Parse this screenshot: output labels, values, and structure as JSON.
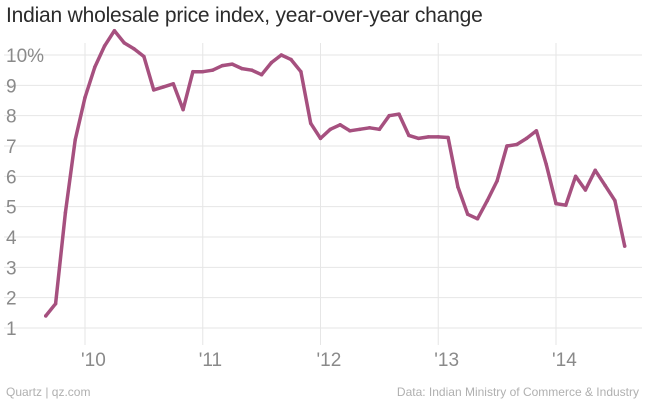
{
  "title": "Indian wholesale price index, year-over-year change",
  "footer": {
    "credit": "Quartz | qz.com",
    "source": "Data: Indian Ministry of Commerce & Industry"
  },
  "colors": {
    "line": "#a6507f",
    "grid": "#e6e6e6",
    "tick_text": "#8a8a8a"
  },
  "chart_data": {
    "type": "line",
    "title": "Indian wholesale price index, year-over-year change",
    "ylim": [
      1,
      10
    ],
    "xlim": [
      2009.5,
      2014.75
    ],
    "y_ticks": [
      {
        "value": 10,
        "label": "10%"
      },
      {
        "value": 9,
        "label": "9"
      },
      {
        "value": 8,
        "label": "8"
      },
      {
        "value": 7,
        "label": "7"
      },
      {
        "value": 6,
        "label": "6"
      },
      {
        "value": 5,
        "label": "5"
      },
      {
        "value": 4,
        "label": "4"
      },
      {
        "value": 3,
        "label": "3"
      },
      {
        "value": 2,
        "label": "2"
      },
      {
        "value": 1,
        "label": "1"
      }
    ],
    "x_ticks": [
      {
        "value": 2010,
        "label": "'10"
      },
      {
        "value": 2011,
        "label": "'11"
      },
      {
        "value": 2012,
        "label": "'12"
      },
      {
        "value": 2013,
        "label": "'13"
      },
      {
        "value": 2014,
        "label": "'14"
      }
    ],
    "grid": true,
    "series": [
      {
        "x": [
          "2009-09",
          "2009-10",
          "2009-11",
          "2009-12",
          "2010-01",
          "2010-02",
          "2010-03",
          "2010-04",
          "2010-05",
          "2010-06",
          "2010-07",
          "2010-08",
          "2010-09",
          "2010-10",
          "2010-11",
          "2010-12",
          "2011-01",
          "2011-02",
          "2011-03",
          "2011-04",
          "2011-05",
          "2011-06",
          "2011-07",
          "2011-08",
          "2011-09",
          "2011-10",
          "2011-11",
          "2011-12",
          "2012-01",
          "2012-02",
          "2012-03",
          "2012-04",
          "2012-05",
          "2012-06",
          "2012-07",
          "2012-08",
          "2012-09",
          "2012-10",
          "2012-11",
          "2012-12",
          "2013-01",
          "2013-02",
          "2013-03",
          "2013-04",
          "2013-05",
          "2013-06",
          "2013-07",
          "2013-08",
          "2013-09",
          "2013-10",
          "2013-11",
          "2013-12",
          "2014-01",
          "2014-02",
          "2014-03",
          "2014-04",
          "2014-05",
          "2014-06",
          "2014-07",
          "2014-08"
        ],
        "values": [
          1.4,
          1.8,
          4.8,
          7.2,
          8.6,
          9.6,
          10.3,
          10.8,
          10.4,
          10.2,
          9.95,
          8.85,
          8.95,
          9.05,
          8.2,
          9.45,
          9.45,
          9.5,
          9.65,
          9.7,
          9.55,
          9.5,
          9.35,
          9.75,
          10.0,
          9.85,
          9.45,
          7.75,
          7.25,
          7.55,
          7.7,
          7.5,
          7.55,
          7.6,
          7.55,
          8.0,
          8.05,
          7.35,
          7.25,
          7.3,
          7.3,
          7.28,
          5.65,
          4.75,
          4.6,
          5.2,
          5.85,
          7.0,
          7.05,
          7.25,
          7.5,
          6.4,
          5.1,
          5.05,
          6.0,
          5.55,
          6.2,
          5.7,
          5.2,
          3.7
        ]
      }
    ]
  }
}
